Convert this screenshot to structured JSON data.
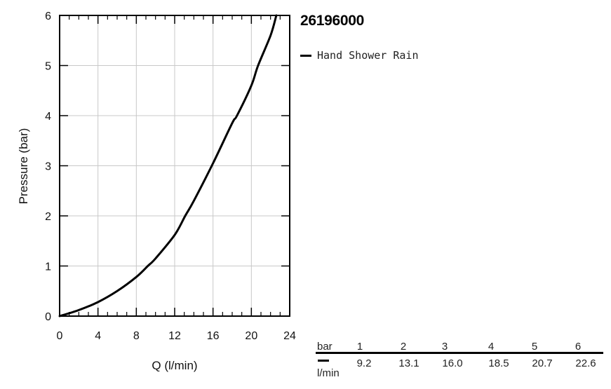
{
  "model": "26196000",
  "legend": {
    "label": "Hand Shower Rain",
    "color": "#000000"
  },
  "chart_data": {
    "type": "line",
    "xlabel": "Q (l/min)",
    "ylabel": "Pressure (bar)",
    "xlim": [
      0,
      24
    ],
    "ylim": [
      0,
      6
    ],
    "xticks": [
      0,
      4,
      8,
      12,
      16,
      20,
      24
    ],
    "yticks": [
      0,
      1,
      2,
      3,
      4,
      5,
      6
    ],
    "grid": true,
    "legend_position": "top-right, outside plot",
    "series": [
      {
        "name": "Hand Shower Rain",
        "color": "#000000",
        "x": [
          0,
          2,
          4,
          6,
          8,
          9.2,
          10,
          12,
          13.1,
          14,
          16,
          18,
          18.5,
          20,
          20.7,
          22,
          22.6
        ],
        "y": [
          0,
          0.12,
          0.28,
          0.5,
          0.78,
          1,
          1.15,
          1.62,
          2,
          2.3,
          3.05,
          3.85,
          4,
          4.6,
          5,
          5.6,
          6
        ]
      }
    ]
  },
  "flow_table": {
    "unit_pressure": "bar",
    "unit_flow": "l/min",
    "pressures": [
      "1",
      "2",
      "3",
      "4",
      "5",
      "6"
    ],
    "flows": [
      "9.2",
      "13.1",
      "16.0",
      "18.5",
      "20.7",
      "22.6"
    ]
  }
}
